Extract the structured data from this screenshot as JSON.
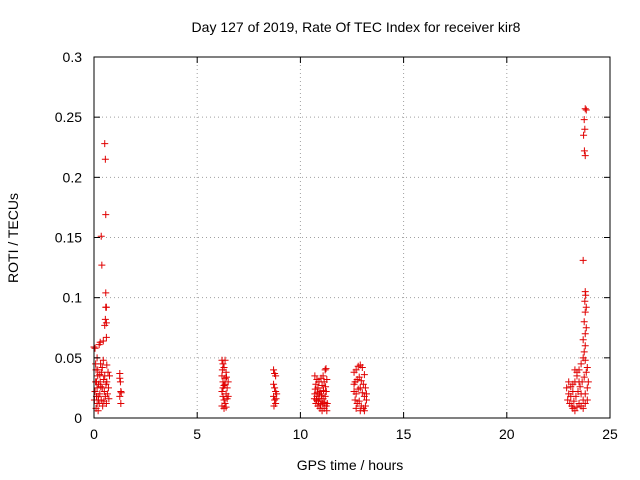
{
  "chart_data": {
    "type": "scatter",
    "title": "Day 127 of 2019, Rate Of TEC Index for receiver kir8",
    "xlabel": "GPS time / hours",
    "ylabel": "ROTI / TECUs",
    "xlim": [
      0,
      25
    ],
    "ylim": [
      0,
      0.3
    ],
    "xticks": [
      0,
      5,
      10,
      15,
      20,
      25
    ],
    "xtick_labels": [
      "0",
      "5",
      "10",
      "15",
      "20",
      "25"
    ],
    "yticks": [
      0,
      0.05,
      0.1,
      0.15,
      0.2,
      0.25,
      0.3
    ],
    "ytick_labels": [
      "0",
      "0.05",
      "0.1",
      "0.15",
      "0.2",
      "0.25",
      "0.3"
    ],
    "grid": true,
    "marker": "+",
    "color": "#e00000",
    "series": [
      {
        "name": "ROTI",
        "points": [
          [
            0.0,
            0.059
          ],
          [
            0.05,
            0.058
          ],
          [
            0.08,
            0.045
          ],
          [
            0.1,
            0.04
          ],
          [
            0.12,
            0.03
          ],
          [
            0.15,
            0.025
          ],
          [
            0.18,
            0.035
          ],
          [
            0.2,
            0.018
          ],
          [
            0.22,
            0.028
          ],
          [
            0.25,
            0.012
          ],
          [
            0.28,
            0.02
          ],
          [
            0.3,
            0.03
          ],
          [
            0.32,
            0.045
          ],
          [
            0.35,
            0.015
          ],
          [
            0.37,
            0.038
          ],
          [
            0.4,
            0.025
          ],
          [
            0.42,
            0.01
          ],
          [
            0.45,
            0.048
          ],
          [
            0.47,
            0.032
          ],
          [
            0.5,
            0.022
          ],
          [
            0.52,
            0.035
          ],
          [
            0.55,
            0.018
          ],
          [
            0.58,
            0.028
          ],
          [
            0.6,
            0.012
          ],
          [
            0.62,
            0.03
          ],
          [
            0.65,
            0.02
          ],
          [
            0.7,
            0.025
          ],
          [
            0.75,
            0.035
          ],
          [
            0.3,
            0.063
          ],
          [
            0.25,
            0.061
          ],
          [
            0.35,
            0.151
          ],
          [
            0.38,
            0.127
          ],
          [
            0.52,
            0.228
          ],
          [
            0.55,
            0.215
          ],
          [
            0.57,
            0.169
          ],
          [
            0.57,
            0.104
          ],
          [
            0.57,
            0.092
          ],
          [
            0.6,
            0.092
          ],
          [
            0.55,
            0.082
          ],
          [
            0.6,
            0.079
          ],
          [
            0.52,
            0.077
          ],
          [
            0.6,
            0.067
          ],
          [
            0.45,
            0.064
          ],
          [
            0.02,
            0.015
          ],
          [
            0.05,
            0.022
          ],
          [
            0.1,
            0.008
          ],
          [
            0.15,
            0.012
          ],
          [
            0.2,
            0.006
          ],
          [
            0.08,
            0.03
          ],
          [
            0.12,
            0.018
          ],
          [
            0.18,
            0.04
          ],
          [
            0.22,
            0.015
          ],
          [
            0.28,
            0.036
          ],
          [
            0.33,
            0.026
          ],
          [
            0.4,
            0.042
          ],
          [
            0.48,
            0.014
          ],
          [
            0.68,
            0.038
          ],
          [
            0.72,
            0.016
          ],
          [
            0.62,
            0.044
          ],
          [
            0.15,
            0.05
          ],
          [
            1.25,
            0.037
          ],
          [
            1.25,
            0.033
          ],
          [
            1.28,
            0.03
          ],
          [
            1.3,
            0.022
          ],
          [
            1.25,
            0.018
          ],
          [
            1.3,
            0.012
          ],
          [
            1.32,
            0.021
          ],
          [
            6.2,
            0.048
          ],
          [
            6.25,
            0.045
          ],
          [
            6.3,
            0.042
          ],
          [
            6.35,
            0.048
          ],
          [
            6.2,
            0.035
          ],
          [
            6.25,
            0.03
          ],
          [
            6.3,
            0.027
          ],
          [
            6.35,
            0.033
          ],
          [
            6.4,
            0.038
          ],
          [
            6.45,
            0.025
          ],
          [
            6.2,
            0.022
          ],
          [
            6.25,
            0.018
          ],
          [
            6.3,
            0.015
          ],
          [
            6.35,
            0.012
          ],
          [
            6.4,
            0.02
          ],
          [
            6.45,
            0.016
          ],
          [
            6.5,
            0.03
          ],
          [
            6.2,
            0.01
          ],
          [
            6.3,
            0.008
          ],
          [
            6.4,
            0.009
          ],
          [
            6.25,
            0.025
          ],
          [
            6.35,
            0.028
          ],
          [
            6.5,
            0.018
          ],
          [
            6.22,
            0.04
          ],
          [
            6.42,
            0.034
          ],
          [
            8.7,
            0.04
          ],
          [
            8.75,
            0.037
          ],
          [
            8.8,
            0.035
          ],
          [
            8.7,
            0.028
          ],
          [
            8.75,
            0.025
          ],
          [
            8.8,
            0.022
          ],
          [
            8.7,
            0.018
          ],
          [
            8.75,
            0.015
          ],
          [
            8.8,
            0.012
          ],
          [
            8.85,
            0.02
          ],
          [
            8.72,
            0.01
          ],
          [
            8.82,
            0.016
          ],
          [
            10.7,
            0.035
          ],
          [
            10.8,
            0.032
          ],
          [
            10.9,
            0.03
          ],
          [
            11.0,
            0.033
          ],
          [
            11.1,
            0.035
          ],
          [
            11.2,
            0.04
          ],
          [
            10.75,
            0.028
          ],
          [
            10.85,
            0.025
          ],
          [
            10.95,
            0.022
          ],
          [
            11.05,
            0.027
          ],
          [
            11.15,
            0.03
          ],
          [
            11.25,
            0.022
          ],
          [
            10.7,
            0.02
          ],
          [
            10.8,
            0.018
          ],
          [
            10.9,
            0.016
          ],
          [
            11.0,
            0.014
          ],
          [
            11.1,
            0.016
          ],
          [
            11.2,
            0.018
          ],
          [
            11.3,
            0.012
          ],
          [
            10.75,
            0.012
          ],
          [
            10.85,
            0.01
          ],
          [
            10.95,
            0.008
          ],
          [
            11.05,
            0.006
          ],
          [
            11.15,
            0.008
          ],
          [
            11.25,
            0.01
          ],
          [
            10.72,
            0.024
          ],
          [
            10.82,
            0.021
          ],
          [
            10.92,
            0.02
          ],
          [
            11.02,
            0.019
          ],
          [
            11.12,
            0.023
          ],
          [
            11.22,
            0.026
          ],
          [
            11.28,
            0.032
          ],
          [
            10.78,
            0.015
          ],
          [
            10.88,
            0.014
          ],
          [
            10.98,
            0.011
          ],
          [
            11.08,
            0.012
          ],
          [
            11.18,
            0.013
          ],
          [
            11.28,
            0.006
          ],
          [
            10.68,
            0.016
          ],
          [
            11.24,
            0.041
          ],
          [
            12.6,
            0.038
          ],
          [
            12.7,
            0.04
          ],
          [
            12.8,
            0.043
          ],
          [
            12.9,
            0.044
          ],
          [
            13.0,
            0.042
          ],
          [
            13.1,
            0.036
          ],
          [
            12.65,
            0.03
          ],
          [
            12.75,
            0.032
          ],
          [
            12.85,
            0.034
          ],
          [
            12.95,
            0.031
          ],
          [
            13.05,
            0.028
          ],
          [
            12.6,
            0.022
          ],
          [
            12.7,
            0.02
          ],
          [
            12.8,
            0.024
          ],
          [
            12.9,
            0.025
          ],
          [
            13.0,
            0.021
          ],
          [
            13.1,
            0.018
          ],
          [
            13.2,
            0.015
          ],
          [
            12.65,
            0.015
          ],
          [
            12.75,
            0.012
          ],
          [
            12.85,
            0.014
          ],
          [
            12.95,
            0.01
          ],
          [
            13.05,
            0.008
          ],
          [
            13.15,
            0.01
          ],
          [
            12.7,
            0.008
          ],
          [
            12.9,
            0.006
          ],
          [
            13.1,
            0.006
          ],
          [
            13.2,
            0.02
          ],
          [
            12.6,
            0.028
          ],
          [
            13.15,
            0.025
          ],
          [
            22.9,
            0.025
          ],
          [
            23.0,
            0.02
          ],
          [
            23.1,
            0.018
          ],
          [
            23.2,
            0.022
          ],
          [
            23.3,
            0.03
          ],
          [
            23.4,
            0.035
          ],
          [
            23.5,
            0.04
          ],
          [
            23.6,
            0.045
          ],
          [
            23.7,
            0.05
          ],
          [
            23.8,
            0.048
          ],
          [
            22.95,
            0.015
          ],
          [
            23.05,
            0.012
          ],
          [
            23.15,
            0.01
          ],
          [
            23.25,
            0.014
          ],
          [
            23.35,
            0.018
          ],
          [
            23.45,
            0.022
          ],
          [
            23.55,
            0.026
          ],
          [
            23.65,
            0.03
          ],
          [
            23.75,
            0.034
          ],
          [
            23.85,
            0.038
          ],
          [
            23.0,
            0.03
          ],
          [
            23.1,
            0.026
          ],
          [
            23.2,
            0.028
          ],
          [
            23.3,
            0.04
          ],
          [
            23.4,
            0.038
          ],
          [
            23.5,
            0.03
          ],
          [
            23.6,
            0.02
          ],
          [
            23.7,
            0.015
          ],
          [
            23.8,
            0.02
          ],
          [
            23.9,
            0.025
          ],
          [
            23.2,
            0.008
          ],
          [
            23.3,
            0.006
          ],
          [
            23.4,
            0.009
          ],
          [
            23.5,
            0.012
          ],
          [
            23.6,
            0.01
          ],
          [
            23.7,
            0.008
          ],
          [
            23.8,
            0.012
          ],
          [
            23.9,
            0.015
          ],
          [
            23.95,
            0.03
          ],
          [
            23.9,
            0.042
          ],
          [
            23.75,
            0.055
          ],
          [
            23.8,
            0.06
          ],
          [
            23.7,
            0.065
          ],
          [
            23.8,
            0.07
          ],
          [
            23.85,
            0.075
          ],
          [
            23.75,
            0.08
          ],
          [
            23.8,
            0.088
          ],
          [
            23.85,
            0.092
          ],
          [
            23.78,
            0.097
          ],
          [
            23.82,
            0.102
          ],
          [
            23.8,
            0.105
          ],
          [
            23.7,
            0.131
          ],
          [
            23.8,
            0.257
          ],
          [
            23.85,
            0.256
          ],
          [
            23.75,
            0.248
          ],
          [
            23.78,
            0.24
          ],
          [
            23.72,
            0.235
          ],
          [
            23.76,
            0.222
          ],
          [
            23.8,
            0.218
          ]
        ]
      }
    ]
  }
}
